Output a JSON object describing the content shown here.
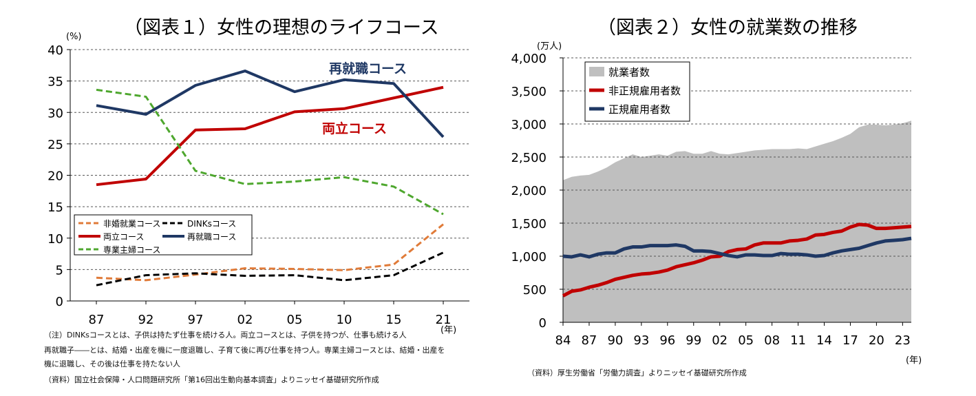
{
  "chart_data": [
    {
      "type": "line",
      "title": "（図表１）女性の理想のライフコース",
      "ylabel": "(%)",
      "xlabel": "(年)",
      "ylim": [
        0,
        40
      ],
      "yticks": [
        "0",
        "5",
        "10",
        "15",
        "20",
        "25",
        "30",
        "35",
        "40"
      ],
      "categories": [
        "87",
        "92",
        "97",
        "02",
        "05",
        "10",
        "15",
        "21"
      ],
      "series": [
        {
          "name": "非婚就業コース",
          "color": "#E07B39",
          "dash": "dashed",
          "values": [
            3.7,
            3.3,
            4.2,
            5.2,
            5.1,
            4.9,
            5.8,
            12.2
          ]
        },
        {
          "name": "DINKsコース",
          "color": "#000000",
          "dash": "dashed",
          "values": [
            2.5,
            4.1,
            4.4,
            4.0,
            4.1,
            3.3,
            4.1,
            7.7
          ]
        },
        {
          "name": "両立コース",
          "color": "#C00000",
          "dash": "solid",
          "values": [
            18.5,
            19.4,
            27.2,
            27.4,
            30.1,
            30.6,
            32.3,
            34.0
          ]
        },
        {
          "name": "再就職コース",
          "color": "#1F3864",
          "dash": "solid",
          "values": [
            31.1,
            29.7,
            34.3,
            36.6,
            33.3,
            35.2,
            34.6,
            26.1
          ]
        },
        {
          "name": "専業主婦コース",
          "color": "#4EA72E",
          "dash": "dashed",
          "values": [
            33.6,
            32.5,
            20.7,
            18.6,
            19.0,
            19.7,
            18.2,
            13.8
          ]
        }
      ],
      "annotations": {
        "saishushoku": "再就職コース",
        "ryoritsu": "両立コース"
      }
    },
    {
      "type": "area",
      "title": "（図表２）女性の就業数の推移",
      "ylabel": "(万人)",
      "xlabel": "(年)",
      "ylim": [
        0,
        4000
      ],
      "yticks": [
        "0",
        "500",
        "1,000",
        "1,500",
        "2,000",
        "2,500",
        "3,000",
        "3,500",
        "4,000"
      ],
      "x": [
        1984,
        1985,
        1986,
        1987,
        1988,
        1989,
        1990,
        1991,
        1992,
        1993,
        1994,
        1995,
        1996,
        1997,
        1998,
        1999,
        2000,
        2001,
        2002,
        2003,
        2004,
        2005,
        2006,
        2007,
        2008,
        2009,
        2010,
        2011,
        2012,
        2013,
        2014,
        2015,
        2016,
        2017,
        2018,
        2019,
        2020,
        2021,
        2022,
        2023,
        2024
      ],
      "xticks": [
        "84",
        "87",
        "90",
        "93",
        "96",
        "99",
        "02",
        "05",
        "08",
        "11",
        "14",
        "17",
        "20",
        "23"
      ],
      "series": [
        {
          "name": "就業者数",
          "color": "#BFBFBF",
          "kind": "area",
          "values": [
            2150,
            2200,
            2220,
            2230,
            2280,
            2340,
            2420,
            2480,
            2540,
            2500,
            2520,
            2540,
            2520,
            2580,
            2590,
            2550,
            2550,
            2590,
            2550,
            2540,
            2560,
            2580,
            2600,
            2610,
            2620,
            2620,
            2620,
            2630,
            2620,
            2660,
            2700,
            2740,
            2790,
            2850,
            2950,
            2990,
            2990,
            2980,
            2990,
            3010,
            3050
          ]
        },
        {
          "name": "非正規雇用者数",
          "color": "#C00000",
          "kind": "line",
          "values": [
            400,
            470,
            490,
            530,
            560,
            600,
            650,
            680,
            710,
            730,
            740,
            760,
            790,
            840,
            870,
            900,
            940,
            990,
            1000,
            1070,
            1100,
            1110,
            1170,
            1200,
            1200,
            1200,
            1230,
            1240,
            1260,
            1320,
            1330,
            1360,
            1380,
            1440,
            1480,
            1470,
            1420,
            1420,
            1430,
            1440,
            1450
          ]
        },
        {
          "name": "正規雇用者数",
          "color": "#1F3864",
          "kind": "line",
          "values": [
            1000,
            990,
            1020,
            990,
            1030,
            1050,
            1050,
            1110,
            1140,
            1140,
            1160,
            1160,
            1160,
            1170,
            1150,
            1080,
            1080,
            1070,
            1040,
            1010,
            990,
            1020,
            1020,
            1010,
            1010,
            1040,
            1030,
            1030,
            1020,
            1000,
            1010,
            1050,
            1080,
            1100,
            1120,
            1160,
            1200,
            1230,
            1240,
            1250,
            1270
          ]
        }
      ]
    }
  ],
  "notes1": [
    "（注）DINKsコースとは、子供は持たず仕事を続ける人。両立コースとは、子供を持つが、仕事も続ける人",
    "再就職子――とは、結婚・出産を機に一度退職し、子育て後に再び仕事を持つ人。専業主婦コースとは、結婚・出産を",
    "機に退職し、その後は仕事を持たない人",
    "（資料）国立社会保障・人口問題研究所「第16回出生動向基本調査」よりニッセイ基礎研究所作成"
  ],
  "notes2": [
    "（資料）厚生労働省「労働力調査」よりニッセイ基礎研究所作成"
  ]
}
